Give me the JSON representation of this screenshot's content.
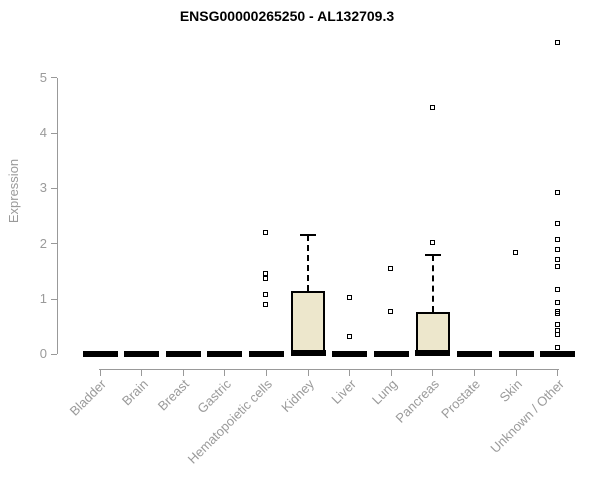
{
  "figure": {
    "title": "ENSG00000265250 - AL132709.3"
  },
  "colors": {
    "background": "#FFFFFF",
    "title": "#000000",
    "axis": "#999999",
    "axis_label": "#9A9A9A",
    "box_fill": "#EDE7CC",
    "box_border": "#000000",
    "median": "#000000",
    "outlier": "#000000"
  },
  "chart_data": {
    "type": "boxplot",
    "title": "ENSG00000265250 - AL132709.3",
    "xlabel": "",
    "ylabel": "Expression",
    "ylim": [
      0,
      5.7
    ],
    "yticks": [
      0,
      1,
      2,
      3,
      4,
      5
    ],
    "grid": false,
    "legend": false,
    "categories": [
      "Bladder",
      "Brain",
      "Breast",
      "Gastric",
      "Hematopoietic cells",
      "Kidney",
      "Liver",
      "Lung",
      "Pancreas",
      "Prostate",
      "Skin",
      "Unknown / Other"
    ],
    "boxes": [
      {
        "category": "Bladder",
        "q1": 0,
        "median": 0,
        "q3": 0,
        "whisker_low": 0,
        "whisker_high": 0,
        "outliers": []
      },
      {
        "category": "Brain",
        "q1": 0,
        "median": 0,
        "q3": 0,
        "whisker_low": 0,
        "whisker_high": 0,
        "outliers": []
      },
      {
        "category": "Breast",
        "q1": 0,
        "median": 0,
        "q3": 0,
        "whisker_low": 0,
        "whisker_high": 0,
        "outliers": []
      },
      {
        "category": "Gastric",
        "q1": 0,
        "median": 0,
        "q3": 0,
        "whisker_low": 0,
        "whisker_high": 0,
        "outliers": []
      },
      {
        "category": "Hematopoietic cells",
        "q1": 0,
        "median": 0,
        "q3": 0,
        "whisker_low": 0,
        "whisker_high": 0,
        "outliers": [
          0.89,
          1.08,
          1.37,
          1.46,
          2.2
        ]
      },
      {
        "category": "Kidney",
        "q1": 0,
        "median": 0.02,
        "q3": 1.14,
        "whisker_low": 0,
        "whisker_high": 2.16,
        "outliers": []
      },
      {
        "category": "Liver",
        "q1": 0,
        "median": 0,
        "q3": 0,
        "whisker_low": 0,
        "whisker_high": 0,
        "outliers": [
          0.32,
          1.01
        ]
      },
      {
        "category": "Lung",
        "q1": 0,
        "median": 0,
        "q3": 0,
        "whisker_low": 0,
        "whisker_high": 0,
        "outliers": [
          0.77,
          1.54
        ]
      },
      {
        "category": "Pancreas",
        "q1": 0,
        "median": 0.02,
        "q3": 0.77,
        "whisker_low": 0,
        "whisker_high": 1.8,
        "outliers": [
          2.02,
          4.45
        ]
      },
      {
        "category": "Prostate",
        "q1": 0,
        "median": 0,
        "q3": 0,
        "whisker_low": 0,
        "whisker_high": 0,
        "outliers": []
      },
      {
        "category": "Skin",
        "q1": 0,
        "median": 0,
        "q3": 0,
        "whisker_low": 0,
        "whisker_high": 0,
        "outliers": [
          1.84
        ]
      },
      {
        "category": "Unknown / Other",
        "q1": 0,
        "median": 0,
        "q3": 0,
        "whisker_low": 0,
        "whisker_high": 0,
        "outliers": [
          0.12,
          0.35,
          0.42,
          0.53,
          0.72,
          0.76,
          0.93,
          1.16,
          1.58,
          1.7,
          1.89,
          2.07,
          2.36,
          2.92,
          5.63
        ]
      }
    ]
  }
}
